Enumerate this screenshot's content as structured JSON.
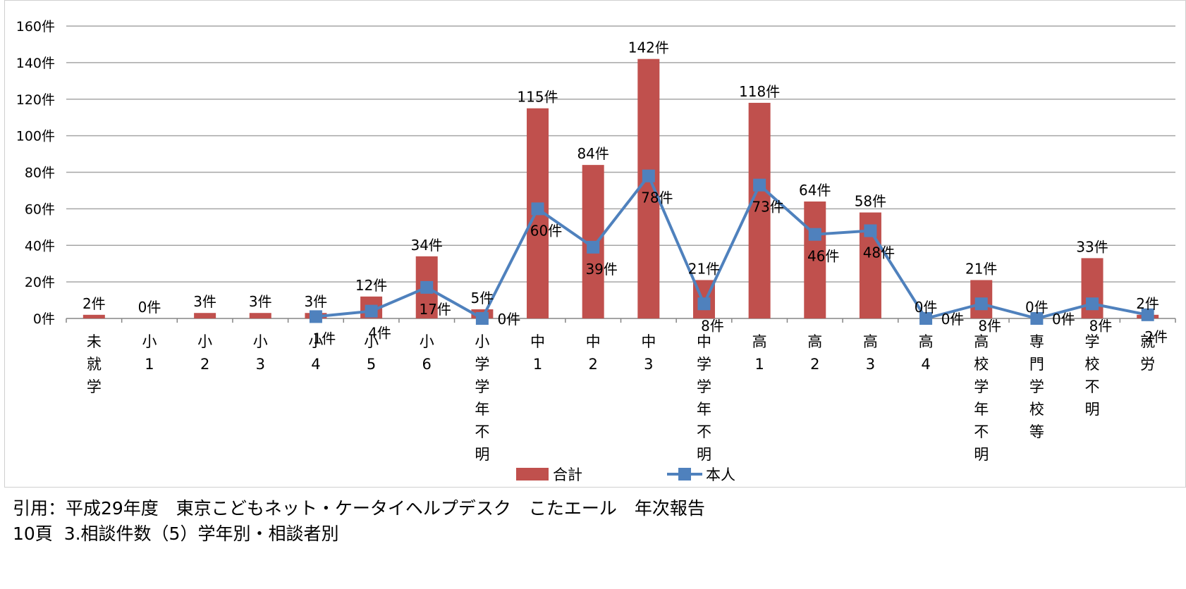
{
  "chart_data": {
    "type": "bar",
    "categories": [
      [
        "未",
        "就",
        "学"
      ],
      [
        "小",
        "1"
      ],
      [
        "小",
        "2"
      ],
      [
        "小",
        "3"
      ],
      [
        "小",
        "4"
      ],
      [
        "小",
        "5"
      ],
      [
        "小",
        "6"
      ],
      [
        "小",
        "学",
        "学",
        "年",
        "不",
        "明"
      ],
      [
        "中",
        "1"
      ],
      [
        "中",
        "2"
      ],
      [
        "中",
        "3"
      ],
      [
        "中",
        "学",
        "学",
        "年",
        "不",
        "明"
      ],
      [
        "高",
        "1"
      ],
      [
        "高",
        "2"
      ],
      [
        "高",
        "3"
      ],
      [
        "高",
        "4"
      ],
      [
        "高",
        "校",
        "学",
        "年",
        "不",
        "明"
      ],
      [
        "専",
        "門",
        "学",
        "校",
        "等"
      ],
      [
        "学",
        "校",
        "不",
        "明"
      ],
      [
        "就",
        "労"
      ]
    ],
    "series": [
      {
        "name": "合計",
        "type": "bar",
        "color": "#c0504d",
        "values": [
          2,
          0,
          3,
          3,
          3,
          12,
          34,
          5,
          115,
          84,
          142,
          21,
          118,
          64,
          58,
          0,
          21,
          0,
          33,
          2
        ],
        "labels": [
          "2件",
          "0件",
          "3件",
          "3件",
          "3件",
          "12件",
          "34件",
          "5件",
          "115件",
          "84件",
          "142件",
          "21件",
          "118件",
          "64件",
          "58件",
          "0件",
          "21件",
          "0件",
          "33件",
          "2件"
        ]
      },
      {
        "name": "本人",
        "type": "line",
        "color": "#4f81bd",
        "values": [
          null,
          null,
          null,
          null,
          1,
          4,
          17,
          0,
          60,
          39,
          78,
          8,
          73,
          46,
          48,
          0,
          8,
          0,
          8,
          2
        ],
        "labels": [
          null,
          null,
          null,
          null,
          "1件",
          "4件",
          "17件",
          "0件",
          "60件",
          "39件",
          "78件",
          "8件",
          "73件",
          "46件",
          "48件",
          "0件",
          "8件",
          "0件",
          "8件",
          "2件"
        ]
      }
    ],
    "y_ticks": [
      "0件",
      "20件",
      "40件",
      "60件",
      "80件",
      "100件",
      "120件",
      "140件",
      "160件"
    ],
    "ylim": [
      0,
      160
    ],
    "grid": true,
    "legend_position": "bottom"
  },
  "citation": {
    "line1": "引用：平成29年度　東京こどもネット・ケータイヘルプデスク　こたエール　年次報告",
    "line2": "10頁  3.相談件数（5）学年別・相談者別"
  }
}
